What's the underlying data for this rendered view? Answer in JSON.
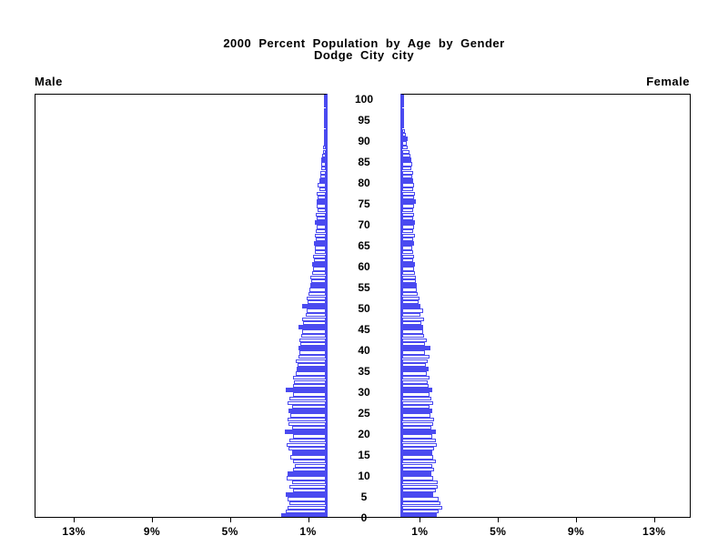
{
  "title": {
    "line1": "2000 Percent Population by Age by Gender",
    "line2": "Dodge City city"
  },
  "panels": {
    "left_label": "Male",
    "right_label": "Female"
  },
  "age_axis": {
    "tick_interval": 5,
    "tick_labels": [
      "0",
      "5",
      "10",
      "15",
      "20",
      "25",
      "30",
      "35",
      "40",
      "45",
      "50",
      "55",
      "60",
      "65",
      "70",
      "75",
      "80",
      "85",
      "90",
      "95",
      "100"
    ]
  },
  "percent_axis": {
    "ticks": [
      {
        "pct": 1,
        "label": "1%"
      },
      {
        "pct": 5,
        "label": "5%"
      },
      {
        "pct": 9,
        "label": "9%"
      },
      {
        "pct": 13,
        "label": "13%"
      }
    ],
    "max_pct_each_side": 15
  },
  "chart_data": {
    "type": "bar",
    "subtype": "population-pyramid",
    "title": "2000 Percent Population by Age by Gender",
    "subtitle": "Dodge City city",
    "x_unit": "percent of total population",
    "age_min": 0,
    "age_max": 100,
    "xlim_each_side": [
      0,
      15
    ],
    "x_ticks_pct": [
      1,
      5,
      9,
      13
    ],
    "highlight_every": 5,
    "grid": false,
    "legend_position": "top-corners",
    "colors": {
      "bar": "#4a4af0",
      "bar_fill_plain": "#ffffff",
      "axis": "#000000",
      "background": "#ffffff"
    },
    "series": [
      {
        "name": "Male",
        "side": "left",
        "values": [
          2.3,
          2.05,
          1.95,
          1.85,
          1.95,
          2.05,
          1.7,
          1.85,
          1.75,
          2.0,
          1.95,
          1.7,
          1.6,
          1.7,
          1.8,
          1.75,
          1.9,
          2.0,
          1.85,
          1.7,
          2.1,
          1.75,
          1.9,
          1.95,
          1.8,
          1.9,
          1.75,
          1.95,
          1.85,
          1.7,
          2.05,
          1.7,
          1.65,
          1.7,
          1.55,
          1.5,
          1.45,
          1.55,
          1.4,
          1.35,
          1.4,
          1.3,
          1.35,
          1.25,
          1.2,
          1.4,
          1.15,
          1.2,
          1.05,
          1.0,
          1.2,
          0.95,
          1.0,
          0.9,
          0.85,
          0.8,
          0.75,
          0.8,
          0.7,
          0.65,
          0.7,
          0.6,
          0.65,
          0.55,
          0.55,
          0.6,
          0.5,
          0.55,
          0.5,
          0.45,
          0.55,
          0.45,
          0.5,
          0.4,
          0.45,
          0.45,
          0.4,
          0.45,
          0.35,
          0.4,
          0.35,
          0.3,
          0.3,
          0.25,
          0.25,
          0.25,
          0.2,
          0.15,
          0.15,
          0.1,
          0.1,
          0.08,
          0.06,
          0.05,
          0.04,
          0.04,
          0.03,
          0.02,
          0.02,
          0.01,
          0.02
        ]
      },
      {
        "name": "Female",
        "side": "right",
        "values": [
          1.75,
          1.85,
          2.05,
          1.95,
          1.85,
          1.6,
          1.7,
          1.8,
          1.8,
          1.6,
          1.5,
          1.65,
          1.55,
          1.7,
          1.6,
          1.55,
          1.65,
          1.75,
          1.7,
          1.55,
          1.7,
          1.5,
          1.6,
          1.65,
          1.45,
          1.55,
          1.4,
          1.6,
          1.5,
          1.4,
          1.55,
          1.35,
          1.3,
          1.4,
          1.25,
          1.37,
          1.2,
          1.3,
          1.4,
          1.15,
          1.45,
          1.15,
          1.25,
          1.1,
          1.05,
          1.05,
          1.0,
          1.1,
          0.95,
          1.05,
          0.95,
          0.85,
          0.9,
          0.8,
          0.75,
          0.75,
          0.7,
          0.7,
          0.65,
          0.6,
          0.65,
          0.55,
          0.6,
          0.55,
          0.5,
          0.6,
          0.55,
          0.65,
          0.55,
          0.6,
          0.65,
          0.55,
          0.6,
          0.55,
          0.6,
          0.72,
          0.6,
          0.65,
          0.55,
          0.6,
          0.58,
          0.5,
          0.55,
          0.45,
          0.5,
          0.47,
          0.4,
          0.35,
          0.3,
          0.25,
          0.26,
          0.18,
          0.15,
          0.1,
          0.08,
          0.06,
          0.04,
          0.03,
          0.02,
          0.02,
          0.02
        ]
      }
    ]
  }
}
